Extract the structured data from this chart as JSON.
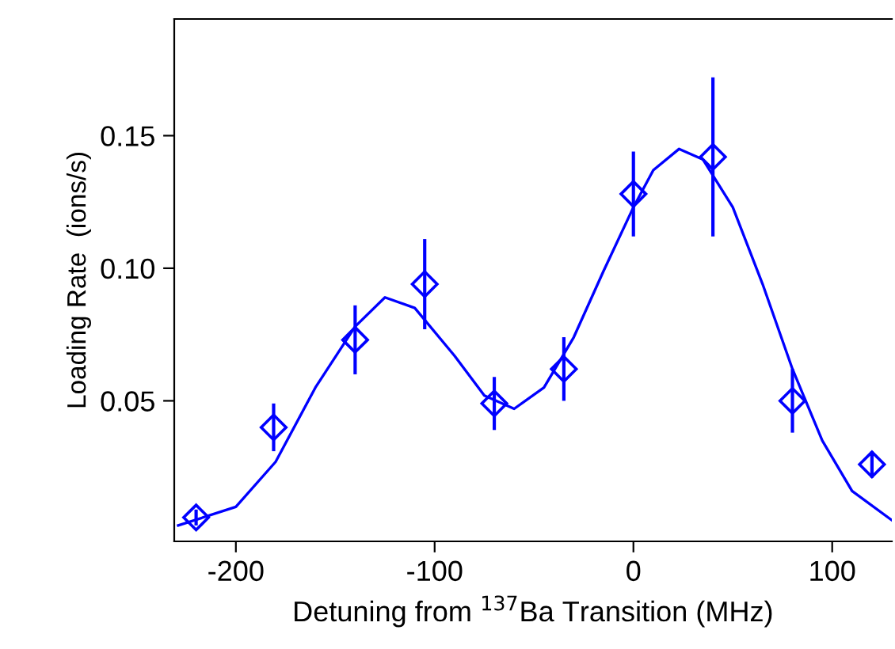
{
  "chart_data": {
    "type": "scatter",
    "xlabel": "Detuning from $^{137}$Ba Transition (MHz)",
    "ylabel": "Loading Rate  (ions/s)",
    "xlim": [
      -231,
      130
    ],
    "ylim": [
      -0.003,
      0.194
    ],
    "xticks": [
      -200,
      -100,
      0,
      100
    ],
    "yticks": [
      {
        "value": 0.05,
        "label": "0.05"
      },
      {
        "value": 0.1,
        "label": "0.10"
      },
      {
        "value": 0.15,
        "label": "0.15"
      }
    ],
    "grid": false,
    "legend": false,
    "series": [
      {
        "color": "#0000ff",
        "marker": "diamond",
        "x": [
          -220,
          -181,
          -140,
          -105,
          -70,
          -35,
          0,
          40,
          80,
          120
        ],
        "values": [
          0.006,
          0.04,
          0.073,
          0.094,
          0.049,
          0.062,
          0.128,
          0.142,
          0.05,
          0.026
        ],
        "errors": [
          0.003,
          0.009,
          0.013,
          0.017,
          0.01,
          0.012,
          0.016,
          0.03,
          0.012,
          0.005
        ]
      },
      {
        "type": "line",
        "color": "#0000ff",
        "marker": "none",
        "line_style": "solid",
        "x": [
          -229,
          -200,
          -180,
          -160,
          -140,
          -125,
          -110,
          -90,
          -75,
          -60,
          -45,
          -30,
          -15,
          0,
          10,
          23,
          35,
          50,
          65,
          80,
          95,
          110,
          130
        ],
        "values": [
          0.003,
          0.01,
          0.027,
          0.055,
          0.078,
          0.089,
          0.085,
          0.067,
          0.052,
          0.047,
          0.055,
          0.074,
          0.099,
          0.123,
          0.137,
          0.145,
          0.141,
          0.123,
          0.094,
          0.062,
          0.035,
          0.016,
          0.005
        ]
      }
    ]
  }
}
